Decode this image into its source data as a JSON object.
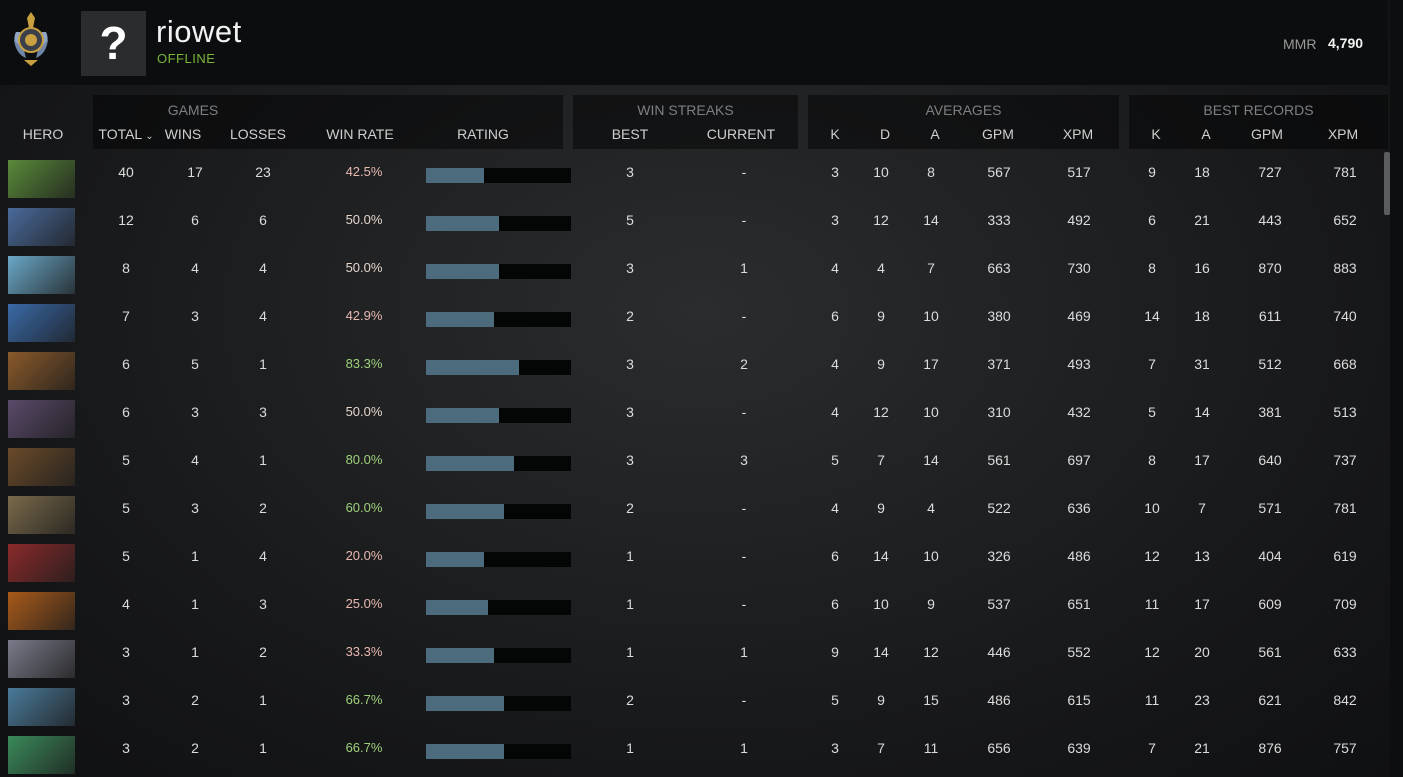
{
  "header": {
    "player_name": "riowet",
    "status": "OFFLINE",
    "mmr_label": "MMR",
    "mmr_value": "4,790",
    "avatar_placeholder": "?"
  },
  "groups": {
    "games": "GAMES",
    "win_streaks": "WIN STREAKS",
    "averages": "AVERAGES",
    "best_records": "BEST RECORDS"
  },
  "columns": {
    "hero": "HERO",
    "total": "TOTAL",
    "wins": "WINS",
    "losses": "LOSSES",
    "win_rate": "WIN RATE",
    "rating": "RATING",
    "best": "BEST",
    "current": "CURRENT",
    "avg_k": "K",
    "avg_d": "D",
    "avg_a": "A",
    "avg_gpm": "GPM",
    "avg_xpm": "XPM",
    "best_k": "K",
    "best_a": "A",
    "best_gpm": "GPM",
    "best_xpm": "XPM"
  },
  "colors": {
    "win_rate_good": "#9fd07a",
    "win_rate_neutral": "#e6d6cc",
    "win_rate_bad": "#e8b8b0",
    "rating_bar": "#4c6c7e",
    "status_online": "#7ab63a"
  },
  "rows": [
    {
      "hero_color": "#5a8a3a",
      "total": "40",
      "wins": "17",
      "losses": "23",
      "win_rate": "42.5%",
      "rating": 0.4,
      "best": "3",
      "current": "-",
      "k": "3",
      "d": "10",
      "a": "8",
      "gpm": "567",
      "xpm": "517",
      "bk": "9",
      "ba": "18",
      "bgpm": "727",
      "bxpm": "781"
    },
    {
      "hero_color": "#4a6a9a",
      "total": "12",
      "wins": "6",
      "losses": "6",
      "win_rate": "50.0%",
      "rating": 0.5,
      "best": "5",
      "current": "-",
      "k": "3",
      "d": "12",
      "a": "14",
      "gpm": "333",
      "xpm": "492",
      "bk": "6",
      "ba": "21",
      "bgpm": "443",
      "bxpm": "652"
    },
    {
      "hero_color": "#6aa8c8",
      "total": "8",
      "wins": "4",
      "losses": "4",
      "win_rate": "50.0%",
      "rating": 0.5,
      "best": "3",
      "current": "1",
      "k": "4",
      "d": "4",
      "a": "7",
      "gpm": "663",
      "xpm": "730",
      "bk": "8",
      "ba": "16",
      "bgpm": "870",
      "bxpm": "883"
    },
    {
      "hero_color": "#3a6aa8",
      "total": "7",
      "wins": "3",
      "losses": "4",
      "win_rate": "42.9%",
      "rating": 0.47,
      "best": "2",
      "current": "-",
      "k": "6",
      "d": "9",
      "a": "10",
      "gpm": "380",
      "xpm": "469",
      "bk": "14",
      "ba": "18",
      "bgpm": "611",
      "bxpm": "740"
    },
    {
      "hero_color": "#8a5a2a",
      "total": "6",
      "wins": "5",
      "losses": "1",
      "win_rate": "83.3%",
      "rating": 0.64,
      "best": "3",
      "current": "2",
      "k": "4",
      "d": "9",
      "a": "17",
      "gpm": "371",
      "xpm": "493",
      "bk": "7",
      "ba": "31",
      "bgpm": "512",
      "bxpm": "668"
    },
    {
      "hero_color": "#5a4a6a",
      "total": "6",
      "wins": "3",
      "losses": "3",
      "win_rate": "50.0%",
      "rating": 0.5,
      "best": "3",
      "current": "-",
      "k": "4",
      "d": "12",
      "a": "10",
      "gpm": "310",
      "xpm": "432",
      "bk": "5",
      "ba": "14",
      "bgpm": "381",
      "bxpm": "513"
    },
    {
      "hero_color": "#6a4a2a",
      "total": "5",
      "wins": "4",
      "losses": "1",
      "win_rate": "80.0%",
      "rating": 0.61,
      "best": "3",
      "current": "3",
      "k": "5",
      "d": "7",
      "a": "14",
      "gpm": "561",
      "xpm": "697",
      "bk": "8",
      "ba": "17",
      "bgpm": "640",
      "bxpm": "737"
    },
    {
      "hero_color": "#7a6a4a",
      "total": "5",
      "wins": "3",
      "losses": "2",
      "win_rate": "60.0%",
      "rating": 0.54,
      "best": "2",
      "current": "-",
      "k": "4",
      "d": "9",
      "a": "4",
      "gpm": "522",
      "xpm": "636",
      "bk": "10",
      "ba": "7",
      "bgpm": "571",
      "bxpm": "781"
    },
    {
      "hero_color": "#8a2a2a",
      "total": "5",
      "wins": "1",
      "losses": "4",
      "win_rate": "20.0%",
      "rating": 0.4,
      "best": "1",
      "current": "-",
      "k": "6",
      "d": "14",
      "a": "10",
      "gpm": "326",
      "xpm": "486",
      "bk": "12",
      "ba": "13",
      "bgpm": "404",
      "bxpm": "619"
    },
    {
      "hero_color": "#a85a1a",
      "total": "4",
      "wins": "1",
      "losses": "3",
      "win_rate": "25.0%",
      "rating": 0.43,
      "best": "1",
      "current": "-",
      "k": "6",
      "d": "10",
      "a": "9",
      "gpm": "537",
      "xpm": "651",
      "bk": "11",
      "ba": "17",
      "bgpm": "609",
      "bxpm": "709"
    },
    {
      "hero_color": "#7a7a8a",
      "total": "3",
      "wins": "1",
      "losses": "2",
      "win_rate": "33.3%",
      "rating": 0.47,
      "best": "1",
      "current": "1",
      "k": "9",
      "d": "14",
      "a": "12",
      "gpm": "446",
      "xpm": "552",
      "bk": "12",
      "ba": "20",
      "bgpm": "561",
      "bxpm": "633"
    },
    {
      "hero_color": "#4a7a9a",
      "total": "3",
      "wins": "2",
      "losses": "1",
      "win_rate": "66.7%",
      "rating": 0.54,
      "best": "2",
      "current": "-",
      "k": "5",
      "d": "9",
      "a": "15",
      "gpm": "486",
      "xpm": "615",
      "bk": "11",
      "ba": "23",
      "bgpm": "621",
      "bxpm": "842"
    },
    {
      "hero_color": "#3a8a5a",
      "total": "3",
      "wins": "2",
      "losses": "1",
      "win_rate": "66.7%",
      "rating": 0.54,
      "best": "1",
      "current": "1",
      "k": "3",
      "d": "7",
      "a": "11",
      "gpm": "656",
      "xpm": "639",
      "bk": "7",
      "ba": "21",
      "bgpm": "876",
      "bxpm": "757"
    }
  ]
}
